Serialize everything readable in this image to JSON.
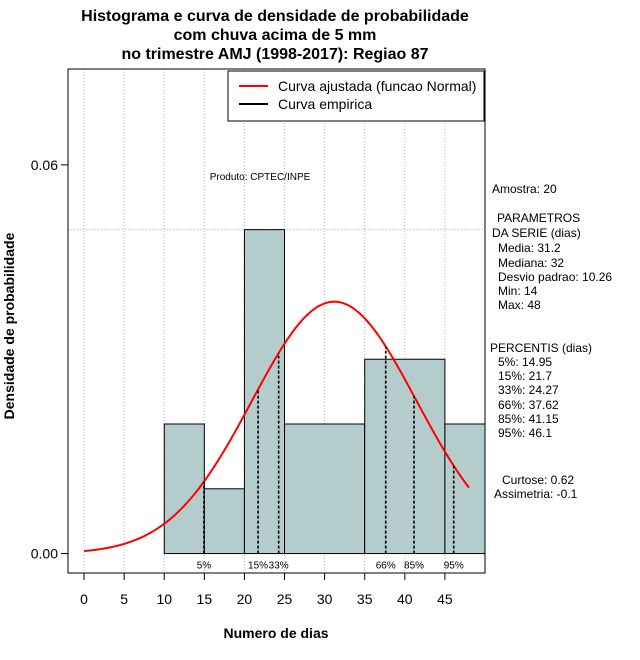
{
  "chart_data": {
    "type": "histogram",
    "title_lines": [
      "Histograma e curva de densidade de probabilidade",
      "com chuva acima de 5 mm",
      "no trimestre AMJ (1998-2017): Regiao 87"
    ],
    "xlabel": "Numero de dias",
    "ylabel": "Densidade de probabilidade",
    "xlim": [
      -2,
      50
    ],
    "ylim": [
      -0.003,
      0.0748
    ],
    "x_ticks": [
      0,
      5,
      10,
      15,
      20,
      25,
      30,
      35,
      40,
      45
    ],
    "x_tick_labels": [
      "0",
      "5",
      "10",
      "15",
      "20",
      "25",
      "30",
      "35",
      "40",
      "45"
    ],
    "y_ticks": [
      0.0,
      0.06
    ],
    "y_tick_labels": [
      "0.00",
      "0.06"
    ],
    "grid_x": [
      0,
      5,
      10,
      15,
      20,
      25,
      30,
      35,
      40,
      45
    ],
    "grid_y": [
      0.05
    ],
    "bins": [
      {
        "from": 10,
        "to": 15,
        "density": 0.02
      },
      {
        "from": 15,
        "to": 20,
        "density": 0.01
      },
      {
        "from": 20,
        "to": 25,
        "density": 0.05
      },
      {
        "from": 25,
        "to": 35,
        "density": 0.02
      },
      {
        "from": 35,
        "to": 45,
        "density": 0.03
      },
      {
        "from": 45,
        "to": 50,
        "density": 0.02
      }
    ],
    "normal_fit": {
      "mean": 31.2,
      "sd": 10.26,
      "x_from": 0,
      "x_to": 48,
      "color": "#ff0000"
    },
    "bar_fill": "#b5cccc",
    "percentile_lines": [
      {
        "x": 14.95,
        "label": "5%"
      },
      {
        "x": 21.7,
        "label": "15%"
      },
      {
        "x": 24.27,
        "label": "33%"
      },
      {
        "x": 37.62,
        "label": "66%"
      },
      {
        "x": 41.15,
        "label": "85%"
      },
      {
        "x": 46.1,
        "label": "95%"
      }
    ],
    "legend": {
      "placement": "top-right",
      "entries": [
        {
          "label": "Curva ajustada (funcao Normal)",
          "color": "#ff0000"
        },
        {
          "label": "Curva empirica",
          "color": "#000000"
        }
      ]
    },
    "annotation": "Produto: CPTEC/INPE"
  },
  "side_panel": {
    "sample": "Amostra: 20",
    "params_title_1": "PARAMETROS",
    "params_title_2": "DA SERIE (dias)",
    "params": [
      "Media: 31.2",
      "Mediana: 32",
      "Desvio padrao: 10.26",
      "Min: 14",
      "Max: 48"
    ],
    "percentis_title": "PERCENTIS (dias)",
    "percentis": [
      "5%: 14.95",
      "15%: 21.7",
      "33%: 24.27",
      "66%: 37.62",
      "85%: 41.15",
      "95%: 46.1"
    ],
    "curtose": "Curtose: 0.62",
    "assimetria": "Assimetria: -0.1"
  }
}
